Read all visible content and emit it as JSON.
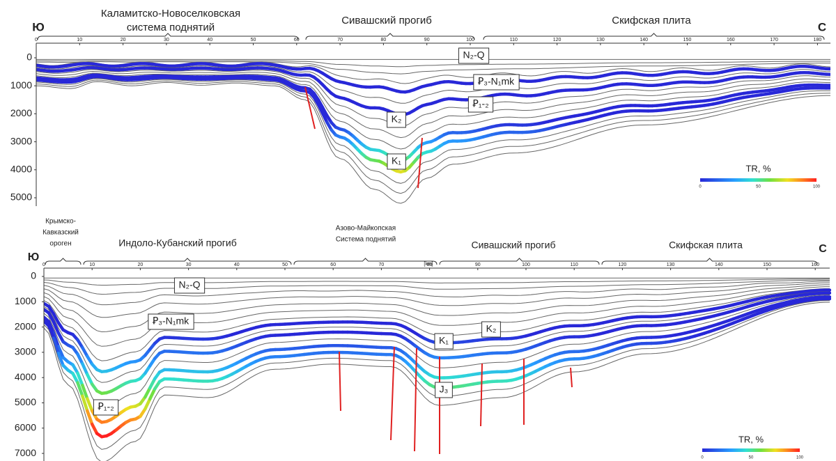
{
  "top_section": {
    "south": "Ю",
    "north": "С",
    "regions": [
      {
        "lines": [
          "Каламитско-Новоселковская",
          "система поднятий"
        ]
      },
      {
        "lines": [
          "Сивашский прогиб"
        ]
      },
      {
        "lines": [
          "Скифская плита"
        ]
      }
    ],
    "x_ticks": [
      0,
      10,
      20,
      30,
      40,
      50,
      60,
      70,
      80,
      90,
      100,
      110,
      120,
      130,
      140,
      150,
      160,
      170,
      180
    ],
    "depth_ticks": [
      0,
      1000,
      2000,
      3000,
      4000,
      5000
    ],
    "layers": [
      "N₂-Q",
      "Ꝑ₃-N₁mk",
      "Ꝑ₁-₂",
      "K₂",
      "K₁"
    ],
    "legend": {
      "title": "TR, %",
      "ticks": [
        0,
        50,
        100
      ]
    }
  },
  "bottom_section": {
    "south": "Ю",
    "north": "С",
    "regions": [
      {
        "lines": [
          "Крымско-",
          "Кавказский",
          "ороген"
        ]
      },
      {
        "lines": [
          "Индоло-Кубанский прогиб"
        ]
      },
      {
        "lines": [
          "Азово-Майкопская",
          "Система поднятий"
        ]
      },
      {
        "lines": [
          "Сивашский прогиб"
        ]
      },
      {
        "lines": [
          "Скифская плита"
        ]
      }
    ],
    "x_unit": "[km]",
    "x_ticks": [
      0,
      10,
      20,
      30,
      40,
      50,
      60,
      70,
      80,
      90,
      100,
      110,
      120,
      130,
      140,
      150,
      160
    ],
    "depth_ticks": [
      0,
      1000,
      2000,
      3000,
      4000,
      5000,
      6000,
      7000
    ],
    "layers": [
      "N₂-Q",
      "Ꝑ₃-N₁mk",
      "K₂",
      "K₁",
      "J₃",
      "Ꝑ₁-₂"
    ],
    "legend": {
      "title": "TR, %",
      "ticks": [
        0,
        50,
        100
      ]
    }
  }
}
